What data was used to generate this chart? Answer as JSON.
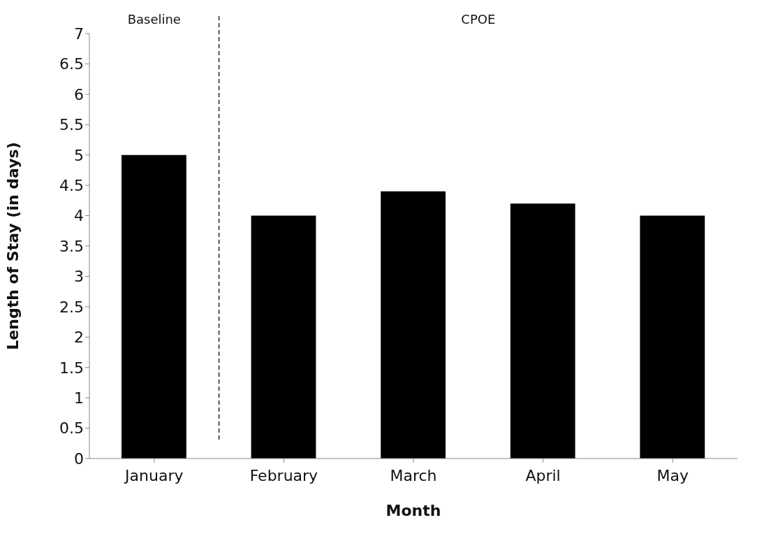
{
  "chart_data": {
    "type": "bar",
    "xlabel": "Month",
    "ylabel": "Length of Stay (in days)",
    "categories": [
      "January",
      "February",
      "March",
      "April",
      "May"
    ],
    "values": [
      5.0,
      4.0,
      4.4,
      4.2,
      4.0
    ],
    "color": "#000000",
    "ylim": [
      0,
      7
    ],
    "yticks": [
      0,
      0.5,
      1,
      1.5,
      2,
      2.5,
      3,
      3.5,
      4,
      4.5,
      5,
      5.5,
      6,
      6.5,
      7
    ],
    "grid": false,
    "annotations": [
      "Baseline",
      "CPOE"
    ]
  }
}
